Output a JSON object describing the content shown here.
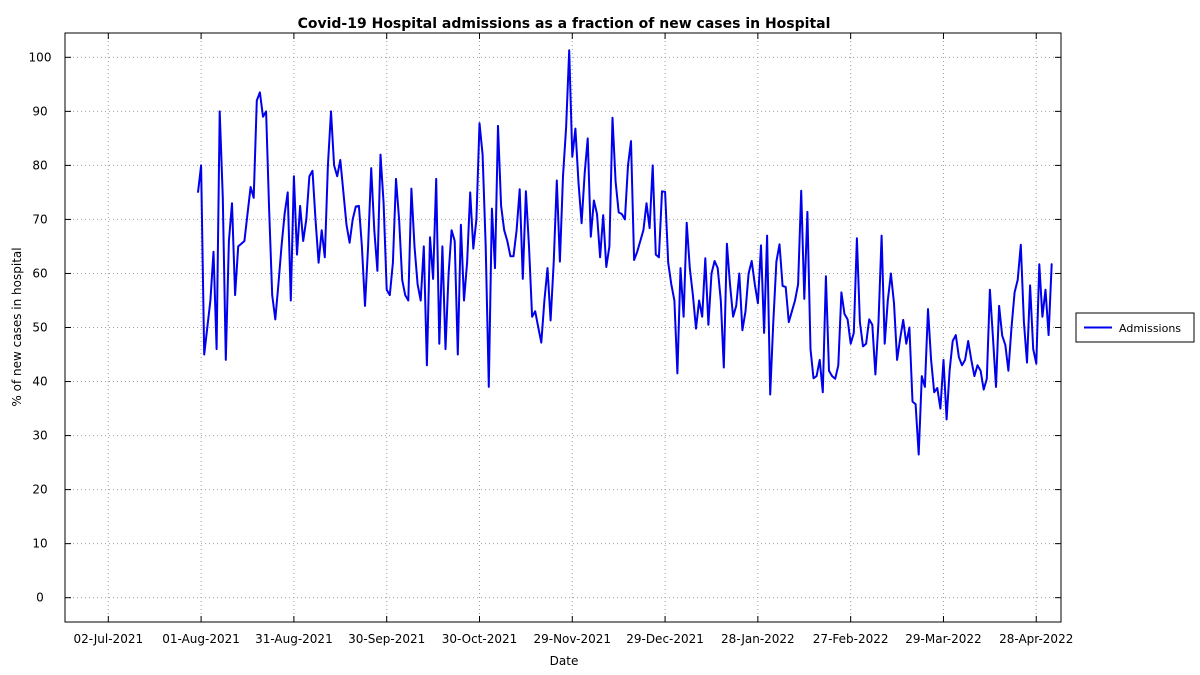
{
  "chart_data": {
    "type": "line",
    "title": "Covid-19 Hospital admissions as a fraction of new cases in Hospital",
    "xlabel": "Date",
    "ylabel": "% of new cases in hospital",
    "xlim": [
      "2021-06-18",
      "2022-05-06"
    ],
    "ylim": [
      -4.5,
      104.5
    ],
    "yticks": [
      0,
      10,
      20,
      30,
      40,
      50,
      60,
      70,
      80,
      90,
      100
    ],
    "xticks": [
      {
        "date": "2021-07-02",
        "label": "02-Jul-2021"
      },
      {
        "date": "2021-08-01",
        "label": "01-Aug-2021"
      },
      {
        "date": "2021-08-31",
        "label": "31-Aug-2021"
      },
      {
        "date": "2021-09-30",
        "label": "30-Sep-2021"
      },
      {
        "date": "2021-10-30",
        "label": "30-Oct-2021"
      },
      {
        "date": "2021-11-29",
        "label": "29-Nov-2021"
      },
      {
        "date": "2021-12-29",
        "label": "29-Dec-2021"
      },
      {
        "date": "2022-01-28",
        "label": "28-Jan-2022"
      },
      {
        "date": "2022-02-27",
        "label": "27-Feb-2022"
      },
      {
        "date": "2022-03-29",
        "label": "29-Mar-2022"
      },
      {
        "date": "2022-04-28",
        "label": "28-Apr-2022"
      }
    ],
    "grid": true,
    "legend_position": "right",
    "series": [
      {
        "name": "Admissions",
        "color": "#0000ee",
        "start_date": "2021-07-31",
        "values": [
          75,
          80,
          45,
          50,
          55,
          64,
          46,
          90,
          74,
          44,
          66,
          73,
          56,
          65,
          65.5,
          66,
          71,
          76,
          74,
          92,
          93.5,
          89,
          90,
          72,
          56,
          51.5,
          58,
          65,
          71,
          75,
          55,
          78,
          63.5,
          72.5,
          66,
          70,
          78,
          79,
          70,
          62,
          68,
          63,
          80,
          90,
          80,
          78,
          81,
          75,
          69,
          65.7,
          70,
          72.4,
          72.5,
          65,
          54,
          65,
          79.5,
          68,
          60.5,
          82,
          73,
          57,
          56,
          62,
          77.5,
          70,
          58.8,
          56,
          55,
          75.7,
          65,
          58,
          55,
          65,
          43,
          66.7,
          59,
          77.5,
          47,
          65,
          46,
          60,
          68,
          66,
          45,
          69,
          55,
          62,
          75,
          64.6,
          70,
          87.8,
          82,
          65,
          39,
          72,
          61,
          87.3,
          72.5,
          68,
          66,
          63.2,
          63.2,
          68,
          75.6,
          59,
          75.2,
          65,
          52,
          53,
          50,
          47.2,
          55,
          61,
          51.3,
          62,
          77.2,
          62.2,
          78,
          87,
          101.3,
          81.6,
          86.8,
          76.8,
          69.3,
          78.6,
          85,
          66.8,
          73.5,
          71,
          63,
          70.8,
          61.2,
          65,
          88.8,
          77,
          71.3,
          71,
          70,
          80,
          84.5,
          62.5,
          64,
          66,
          68,
          73,
          68.4,
          80,
          63.5,
          63,
          75.2,
          75.1,
          62,
          58,
          55,
          41.5,
          61,
          52,
          69.4,
          61,
          56,
          49.8,
          55,
          52,
          62.8,
          50.5,
          60,
          62.3,
          61,
          55,
          42.6,
          65.5,
          58,
          52,
          54,
          60,
          49.5,
          53,
          60,
          62.3,
          58,
          54.5,
          65.2,
          49,
          67,
          37.6,
          51,
          62.2,
          65.4,
          57.7,
          57.5,
          51,
          53,
          55,
          58,
          75.3,
          55.3,
          71.4,
          46,
          40.6,
          41,
          44,
          38,
          59.5,
          42,
          41,
          40.5,
          43,
          56.5,
          52.5,
          51.5,
          47,
          49,
          66.5,
          51,
          46.5,
          47,
          51.5,
          50.5,
          41.3,
          51,
          67,
          47,
          55,
          60,
          54.5,
          44,
          48,
          51.4,
          47,
          50,
          36.3,
          35.8,
          26.5,
          41,
          39,
          53.4,
          44,
          38,
          38.8,
          35,
          44,
          33,
          42,
          47.5,
          48.6,
          44.5,
          43,
          44,
          47.5,
          44,
          41,
          43,
          42,
          38.5,
          40.5,
          57,
          48,
          39,
          54,
          48.5,
          46.8,
          42,
          50,
          56.5,
          58.8,
          65.3,
          51,
          43.5,
          57.8,
          46,
          43.3,
          61.7,
          52,
          57,
          48.6,
          61.8
        ]
      }
    ]
  }
}
